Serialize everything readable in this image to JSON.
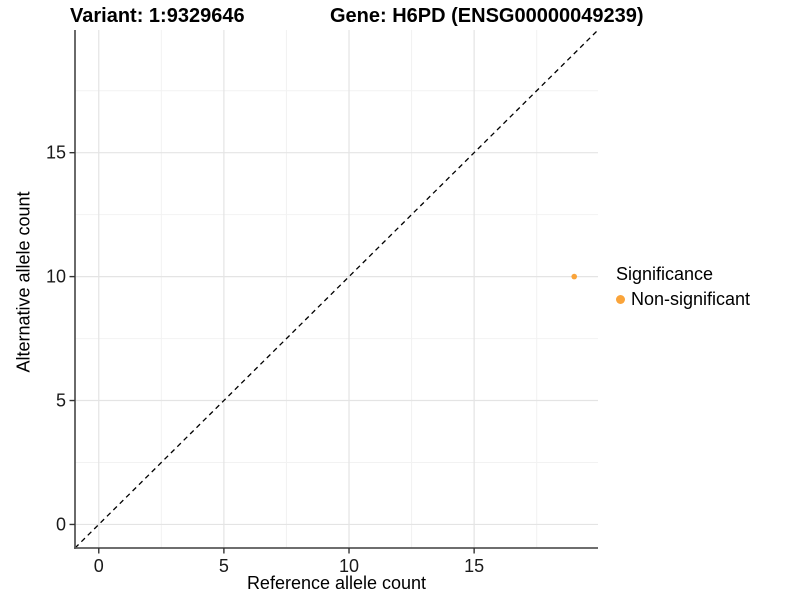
{
  "chart_data": {
    "type": "scatter",
    "title_left": "Variant: 1:9329646",
    "title_right": "Gene: H6PD (ENSG00000049239)",
    "xlabel": "Reference allele count",
    "ylabel": "Alternative allele count",
    "xlim": [
      -0.95,
      19.95
    ],
    "ylim": [
      -0.95,
      19.95
    ],
    "x_major_ticks": [
      0,
      5,
      10,
      15
    ],
    "y_major_ticks": [
      0,
      5,
      10,
      15
    ],
    "x_minor_ticks": [
      2.5,
      7.5,
      12.5,
      17.5
    ],
    "y_minor_ticks": [
      2.5,
      7.5,
      12.5,
      17.5
    ],
    "grid": true,
    "identity_line": {
      "from": [
        -0.95,
        -0.95
      ],
      "to": [
        19.95,
        19.95
      ],
      "style": "dashed",
      "color": "#000000"
    },
    "points": [
      {
        "x": 19,
        "y": 10,
        "series": "Non-significant"
      }
    ],
    "legend": {
      "title": "Significance",
      "position": "right",
      "items": [
        {
          "label": "Non-significant",
          "color": "#FAA43A"
        }
      ]
    },
    "colors": {
      "background": "#ffffff",
      "grid_major": "#e4e4e4",
      "grid_minor": "#f2f2f2",
      "axis_line": "#595959",
      "tick_mark": "#333333",
      "tick_text": "#1a1a1a",
      "point": "#FAA43A"
    }
  }
}
